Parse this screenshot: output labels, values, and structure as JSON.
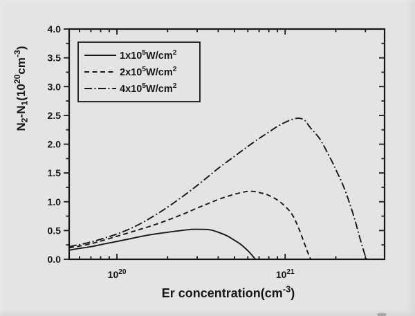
{
  "figure": {
    "background_color": "#e4e4e2",
    "ink_color": "#161616"
  },
  "chart_data": {
    "type": "line",
    "title": "",
    "xlabel": "Er concentration(cm⁻³)",
    "ylabel": "N₂-N₁(10²⁰cm⁻³)",
    "x_scale": "log",
    "grid": false,
    "xlim": [
      5.2e+19,
      3.9e+21
    ],
    "ylim": [
      0.0,
      4.0
    ],
    "x_major_ticks": [
      {
        "value": 1e+20,
        "label": "10²⁰"
      },
      {
        "value": 1e+21,
        "label": "10²¹"
      }
    ],
    "x_minor_ticks": [
      6e+19,
      7e+19,
      8e+19,
      9e+19,
      2e+20,
      3e+20,
      4e+20,
      5e+20,
      6e+20,
      7e+20,
      8e+20,
      9e+20,
      2e+21,
      3e+21
    ],
    "y_major_ticks": [
      {
        "value": 0.0,
        "label": "0.0"
      },
      {
        "value": 0.5,
        "label": "0.5"
      },
      {
        "value": 1.0,
        "label": "1.0"
      },
      {
        "value": 1.5,
        "label": "1.5"
      },
      {
        "value": 2.0,
        "label": "2.0"
      },
      {
        "value": 2.5,
        "label": "2.5"
      },
      {
        "value": 3.0,
        "label": "3.0"
      },
      {
        "value": 3.5,
        "label": "3.5"
      },
      {
        "value": 4.0,
        "label": "4.0"
      }
    ],
    "y_minor_ticks": [
      0.25,
      0.75,
      1.25,
      1.75,
      2.25,
      2.75,
      3.25,
      3.75
    ],
    "legend": {
      "position": "top-left",
      "entries": [
        {
          "label": "1x10⁵W/cm²",
          "style": "solid"
        },
        {
          "label": "2x10⁵W/cm²",
          "style": "dashed"
        },
        {
          "label": "4x10⁵W/cm²",
          "style": "dash-dot"
        }
      ]
    },
    "y_value_unit": "10²⁰ cm⁻³",
    "series": [
      {
        "name": "1x10⁵W/cm²",
        "style": "solid",
        "peak": {
          "x": 3e+20,
          "y": 0.52
        },
        "points": [
          [
            5.2e+19,
            0.16
          ],
          [
            6e+19,
            0.19
          ],
          [
            7e+19,
            0.22
          ],
          [
            8.5e+19,
            0.27
          ],
          [
            1e+20,
            0.31
          ],
          [
            1.3e+20,
            0.38
          ],
          [
            1.6e+20,
            0.43
          ],
          [
            2e+20,
            0.47
          ],
          [
            2.4e+20,
            0.5
          ],
          [
            2.8e+20,
            0.52
          ],
          [
            3.2e+20,
            0.52
          ],
          [
            3.6e+20,
            0.51
          ],
          [
            4e+20,
            0.47
          ],
          [
            4.5e+20,
            0.41
          ],
          [
            5e+20,
            0.33
          ],
          [
            5.5e+20,
            0.25
          ],
          [
            6e+20,
            0.15
          ],
          [
            6.4e+20,
            0.06
          ],
          [
            6.65e+20,
            0.0
          ]
        ]
      },
      {
        "name": "2x10⁵W/cm²",
        "style": "dashed",
        "peak": {
          "x": 6.2e+20,
          "y": 1.18
        },
        "points": [
          [
            5.2e+19,
            0.2
          ],
          [
            7e+19,
            0.27
          ],
          [
            1e+20,
            0.4
          ],
          [
            1.3e+20,
            0.5
          ],
          [
            1.6e+20,
            0.58
          ],
          [
            2e+20,
            0.68
          ],
          [
            2.5e+20,
            0.79
          ],
          [
            3e+20,
            0.89
          ],
          [
            3.5e+20,
            0.97
          ],
          [
            4e+20,
            1.04
          ],
          [
            4.5e+20,
            1.09
          ],
          [
            5e+20,
            1.13
          ],
          [
            5.5e+20,
            1.16
          ],
          [
            6e+20,
            1.18
          ],
          [
            6.5e+20,
            1.18
          ],
          [
            7e+20,
            1.16
          ],
          [
            7.5e+20,
            1.14
          ],
          [
            8e+20,
            1.11
          ],
          [
            9e+20,
            1.03
          ],
          [
            1e+21,
            0.92
          ],
          [
            1.1e+21,
            0.78
          ],
          [
            1.2e+21,
            0.55
          ],
          [
            1.3e+21,
            0.28
          ],
          [
            1.38e+21,
            0.08
          ],
          [
            1.42e+21,
            0.0
          ]
        ]
      },
      {
        "name": "4x10⁵W/cm²",
        "style": "dash-dot",
        "peak": {
          "x": 1.2e+21,
          "y": 2.45
        },
        "points": [
          [
            5.2e+19,
            0.22
          ],
          [
            7e+19,
            0.3
          ],
          [
            1e+20,
            0.44
          ],
          [
            1.3e+20,
            0.58
          ],
          [
            1.76e+20,
            0.8
          ],
          [
            2.2e+20,
            0.99
          ],
          [
            2.7e+20,
            1.18
          ],
          [
            3.3e+20,
            1.38
          ],
          [
            4e+20,
            1.58
          ],
          [
            5e+20,
            1.79
          ],
          [
            6e+20,
            1.96
          ],
          [
            7e+20,
            2.1
          ],
          [
            8e+20,
            2.21
          ],
          [
            9e+20,
            2.31
          ],
          [
            1e+21,
            2.38
          ],
          [
            1.1e+21,
            2.43
          ],
          [
            1.2e+21,
            2.45
          ],
          [
            1.3e+21,
            2.42
          ],
          [
            1.4e+21,
            2.3
          ],
          [
            1.5e+21,
            2.2
          ],
          [
            1.6e+21,
            2.1
          ],
          [
            1.7e+21,
            1.97
          ],
          [
            1.8e+21,
            1.83
          ],
          [
            1.9e+21,
            1.7
          ],
          [
            2e+21,
            1.56
          ],
          [
            2.2e+21,
            1.3
          ],
          [
            2.4e+21,
            1.0
          ],
          [
            2.6e+21,
            0.68
          ],
          [
            2.8e+21,
            0.34
          ],
          [
            3e+21,
            0.05
          ],
          [
            3.05e+21,
            0.0
          ]
        ]
      }
    ]
  }
}
